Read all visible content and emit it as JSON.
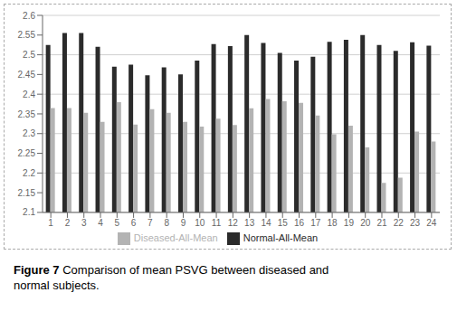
{
  "chart_data": {
    "type": "bar",
    "annotations": [
      "Figure 7",
      "Comparison of mean PSVG between diseased and\nnormal subjects."
    ],
    "categories": [
      1,
      2,
      3,
      4,
      5,
      6,
      7,
      8,
      9,
      10,
      11,
      12,
      13,
      14,
      15,
      16,
      17,
      18,
      19,
      20,
      21,
      22,
      23,
      24
    ],
    "series": [
      {
        "name": "Normal-All-Mean",
        "color": "#2b2b2b",
        "values": [
          2.525,
          2.555,
          2.555,
          2.52,
          2.47,
          2.475,
          2.448,
          2.468,
          2.45,
          2.485,
          2.527,
          2.522,
          2.55,
          2.53,
          2.505,
          2.485,
          2.495,
          2.533,
          2.538,
          2.55,
          2.525,
          2.51,
          2.532,
          2.523
        ]
      },
      {
        "name": "Diseased-All-Mean",
        "color": "#b3b3b3",
        "values": [
          2.365,
          2.365,
          2.353,
          2.33,
          2.38,
          2.323,
          2.362,
          2.353,
          2.33,
          2.318,
          2.338,
          2.322,
          2.364,
          2.388,
          2.382,
          2.378,
          2.346,
          2.298,
          2.32,
          2.265,
          2.175,
          2.188,
          2.305,
          2.28
        ]
      }
    ],
    "ylim": [
      2.1,
      2.6
    ],
    "yticks": [
      2.1,
      2.15,
      2.2,
      2.25,
      2.3,
      2.35,
      2.4,
      2.45,
      2.5,
      2.55,
      2.6
    ],
    "grid": true,
    "legend": "bottom"
  }
}
